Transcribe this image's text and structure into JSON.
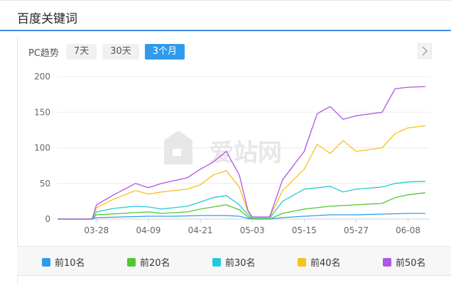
{
  "header": {
    "title": "百度关键词"
  },
  "toolbar": {
    "label": "PC趋势",
    "ranges": [
      "7天",
      "30天",
      "3个月"
    ],
    "active_range": "3个月"
  },
  "watermark": {
    "text": "爱站网"
  },
  "chart_data": {
    "type": "line",
    "ylim": [
      0,
      200
    ],
    "y_ticks": [
      0,
      50,
      100,
      150,
      200
    ],
    "x_tick_labels": [
      "03-28",
      "04-09",
      "04-21",
      "05-03",
      "05-15",
      "05-27",
      "06-08"
    ],
    "x_start": "03-19",
    "x_end": "06-13",
    "grid": "horizontal",
    "legend_position": "bottom",
    "series": [
      {
        "name": "前10名",
        "color": "#2e9cea",
        "points": [
          [
            "03-19",
            0
          ],
          [
            "03-27",
            0
          ],
          [
            "03-28",
            2
          ],
          [
            "04-03",
            3
          ],
          [
            "04-09",
            4
          ],
          [
            "04-15",
            4
          ],
          [
            "04-21",
            5
          ],
          [
            "04-27",
            5
          ],
          [
            "04-30",
            4
          ],
          [
            "05-02",
            1
          ],
          [
            "05-03",
            0
          ],
          [
            "05-07",
            0
          ],
          [
            "05-10",
            2
          ],
          [
            "05-15",
            4
          ],
          [
            "05-21",
            6
          ],
          [
            "05-27",
            6
          ],
          [
            "06-02",
            7
          ],
          [
            "06-08",
            8
          ],
          [
            "06-12",
            8
          ]
        ]
      },
      {
        "name": "前20名",
        "color": "#52c72e",
        "points": [
          [
            "03-19",
            0
          ],
          [
            "03-27",
            0
          ],
          [
            "03-28",
            6
          ],
          [
            "04-03",
            8
          ],
          [
            "04-09",
            10
          ],
          [
            "04-12",
            8
          ],
          [
            "04-18",
            10
          ],
          [
            "04-21",
            14
          ],
          [
            "04-27",
            20
          ],
          [
            "04-30",
            13
          ],
          [
            "05-02",
            3
          ],
          [
            "05-03",
            0
          ],
          [
            "05-07",
            0
          ],
          [
            "05-10",
            8
          ],
          [
            "05-15",
            14
          ],
          [
            "05-21",
            18
          ],
          [
            "05-27",
            20
          ],
          [
            "06-02",
            22
          ],
          [
            "06-05",
            30
          ],
          [
            "06-08",
            34
          ],
          [
            "06-12",
            37
          ]
        ]
      },
      {
        "name": "前30名",
        "color": "#21cbd9",
        "points": [
          [
            "03-19",
            0
          ],
          [
            "03-27",
            0
          ],
          [
            "03-28",
            10
          ],
          [
            "04-01",
            15
          ],
          [
            "04-06",
            18
          ],
          [
            "04-09",
            17
          ],
          [
            "04-12",
            14
          ],
          [
            "04-18",
            18
          ],
          [
            "04-21",
            24
          ],
          [
            "04-24",
            30
          ],
          [
            "04-27",
            33
          ],
          [
            "04-30",
            20
          ],
          [
            "05-02",
            6
          ],
          [
            "05-03",
            1
          ],
          [
            "05-07",
            1
          ],
          [
            "05-10",
            25
          ],
          [
            "05-15",
            42
          ],
          [
            "05-21",
            46
          ],
          [
            "05-24",
            38
          ],
          [
            "05-27",
            42
          ],
          [
            "06-02",
            45
          ],
          [
            "06-05",
            50
          ],
          [
            "06-08",
            52
          ],
          [
            "06-12",
            53
          ]
        ]
      },
      {
        "name": "前40名",
        "color": "#f7c21a",
        "points": [
          [
            "03-19",
            0
          ],
          [
            "03-27",
            0
          ],
          [
            "03-28",
            16
          ],
          [
            "04-01",
            28
          ],
          [
            "04-06",
            40
          ],
          [
            "04-09",
            35
          ],
          [
            "04-12",
            38
          ],
          [
            "04-18",
            42
          ],
          [
            "04-21",
            48
          ],
          [
            "04-24",
            62
          ],
          [
            "04-27",
            68
          ],
          [
            "04-30",
            45
          ],
          [
            "05-02",
            10
          ],
          [
            "05-03",
            2
          ],
          [
            "05-07",
            2
          ],
          [
            "05-10",
            40
          ],
          [
            "05-15",
            70
          ],
          [
            "05-18",
            105
          ],
          [
            "05-21",
            92
          ],
          [
            "05-24",
            110
          ],
          [
            "05-27",
            95
          ],
          [
            "06-02",
            100
          ],
          [
            "06-05",
            120
          ],
          [
            "06-08",
            128
          ],
          [
            "06-12",
            131
          ]
        ]
      },
      {
        "name": "前50名",
        "color": "#ad55e6",
        "points": [
          [
            "03-19",
            0
          ],
          [
            "03-27",
            0
          ],
          [
            "03-28",
            20
          ],
          [
            "04-01",
            34
          ],
          [
            "04-06",
            50
          ],
          [
            "04-09",
            44
          ],
          [
            "04-12",
            50
          ],
          [
            "04-18",
            58
          ],
          [
            "04-21",
            70
          ],
          [
            "04-24",
            80
          ],
          [
            "04-27",
            95
          ],
          [
            "04-30",
            62
          ],
          [
            "05-02",
            12
          ],
          [
            "05-03",
            3
          ],
          [
            "05-07",
            3
          ],
          [
            "05-10",
            55
          ],
          [
            "05-15",
            95
          ],
          [
            "05-18",
            148
          ],
          [
            "05-21",
            158
          ],
          [
            "05-24",
            140
          ],
          [
            "05-27",
            145
          ],
          [
            "06-02",
            150
          ],
          [
            "06-05",
            183
          ],
          [
            "06-08",
            185
          ],
          [
            "06-12",
            186
          ]
        ]
      }
    ]
  }
}
